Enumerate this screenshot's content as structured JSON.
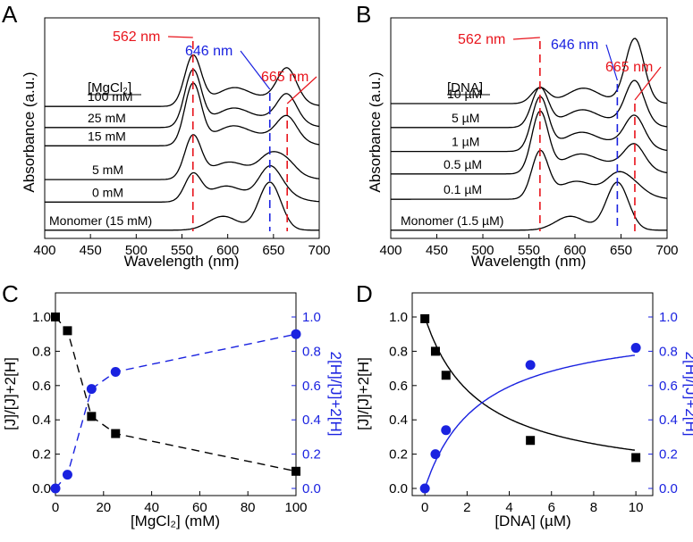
{
  "chart_data": [
    {
      "id": "A",
      "panel_label": "A",
      "type": "line",
      "xlabel": "Wavelength (nm)",
      "ylabel": "Absorbance (a.u.)",
      "xlim": [
        400,
        700
      ],
      "xticks": [
        400,
        450,
        500,
        550,
        600,
        650,
        700
      ],
      "legend_title": "[MgCl₂]",
      "series": [
        {
          "name": "100 mM",
          "label": "100 mM",
          "offset": 0.88,
          "mix": {
            "J": 0.36,
            "H": 0.64,
            "M": 0.0
          }
        },
        {
          "name": "25 mM",
          "label": "25 mM",
          "offset": 0.73,
          "mix": {
            "J": 0.28,
            "H": 0.72,
            "M": 0.0
          }
        },
        {
          "name": "15 mM",
          "label": "15 mM",
          "offset": 0.6,
          "mix": {
            "J": 0.22,
            "H": 0.78,
            "M": 0.0
          }
        },
        {
          "name": "5 mM",
          "label": "5 mM",
          "offset": 0.36,
          "mix": {
            "J": 0.1,
            "H": 0.55,
            "M": 0.35
          }
        },
        {
          "name": "0 mM",
          "label": "0 mM",
          "offset": 0.2,
          "mix": {
            "J": 0.02,
            "H": 0.35,
            "M": 0.63
          }
        },
        {
          "name": "Monomer (15 mM)",
          "label": "Monomer (15 mM)",
          "offset": 0.0,
          "mix": {
            "J": 0.0,
            "H": 0.0,
            "M": 1.0
          }
        }
      ],
      "markers": [
        {
          "label": "562 nm",
          "x": 562,
          "color": "#e8141c"
        },
        {
          "label": "646 nm",
          "x": 646,
          "color": "#1a22e0"
        },
        {
          "label": "665 nm",
          "x": 665,
          "color": "#e8141c"
        }
      ]
    },
    {
      "id": "B",
      "panel_label": "B",
      "type": "line",
      "xlabel": "Wavelength (nm)",
      "ylabel": "Absorbance (a.u.)",
      "xlim": [
        400,
        700
      ],
      "xticks": [
        400,
        450,
        500,
        550,
        600,
        650,
        700
      ],
      "legend_title": "[DNA]",
      "series": [
        {
          "name": "10 µM",
          "label": "10 µM",
          "offset": 0.9,
          "mix": {
            "J": 0.8,
            "H": 0.2,
            "M": 0.0
          }
        },
        {
          "name": "5 µM",
          "label": "5 µM",
          "offset": 0.73,
          "mix": {
            "J": 0.5,
            "H": 0.5,
            "M": 0.0
          }
        },
        {
          "name": "1 µM",
          "label": "1 µM",
          "offset": 0.56,
          "mix": {
            "J": 0.32,
            "H": 0.68,
            "M": 0.0
          }
        },
        {
          "name": "0.5 µM",
          "label": "0.5 µM",
          "offset": 0.4,
          "mix": {
            "J": 0.22,
            "H": 0.78,
            "M": 0.0
          }
        },
        {
          "name": "0.1 µM",
          "label": "0.1 µM",
          "offset": 0.22,
          "mix": {
            "J": 0.05,
            "H": 0.6,
            "M": 0.35
          }
        },
        {
          "name": "Monomer (1.5 µM)",
          "label": "Monomer (1.5 µM)",
          "offset": 0.0,
          "mix": {
            "J": 0.0,
            "H": 0.0,
            "M": 1.0
          }
        }
      ],
      "markers": [
        {
          "label": "562 nm",
          "x": 562,
          "color": "#e8141c"
        },
        {
          "label": "646 nm",
          "x": 646,
          "color": "#1a22e0"
        },
        {
          "label": "665 nm",
          "x": 665,
          "color": "#e8141c"
        }
      ]
    },
    {
      "id": "C",
      "panel_label": "C",
      "type": "scatter",
      "xlabel": "[MgCl₂] (mM)",
      "ylabel_left": "[J]/[J]+2[H]",
      "ylabel_right": "2[H]/[J]+2[H]",
      "xlim": [
        0,
        100
      ],
      "xticks": [
        0,
        20,
        40,
        60,
        80,
        100
      ],
      "ylim": [
        0,
        1.0
      ],
      "yticks": [
        "0.0",
        "0.2",
        "0.4",
        "0.6",
        "0.8",
        "1.0"
      ],
      "fit": "dashed",
      "series": [
        {
          "name": "[J]/[J]+2[H]",
          "color": "#000000",
          "marker": "square",
          "x": [
            0,
            5,
            15,
            25,
            100
          ],
          "values": [
            1.0,
            0.92,
            0.42,
            0.32,
            0.1
          ]
        },
        {
          "name": "2[H]/[J]+2[H]",
          "color": "#1a22e0",
          "marker": "circle",
          "x": [
            0,
            5,
            15,
            25,
            100
          ],
          "values": [
            0.0,
            0.08,
            0.58,
            0.68,
            0.9
          ]
        }
      ]
    },
    {
      "id": "D",
      "panel_label": "D",
      "type": "scatter",
      "xlabel": "[DNA] (µM)",
      "ylabel_left": "[J]/[J]+2[H]",
      "ylabel_right": "2[H]/[J]+2[H]",
      "xlim": [
        -0.6,
        10.8
      ],
      "xticks": [
        0,
        2,
        4,
        6,
        8,
        10
      ],
      "ylim": [
        0,
        1.0
      ],
      "yticks": [
        "0.0",
        "0.2",
        "0.4",
        "0.6",
        "0.8",
        "1.0"
      ],
      "fit": "solid",
      "series": [
        {
          "name": "[J]/[J]+2[H]",
          "color": "#000000",
          "marker": "square",
          "x": [
            0,
            0.5,
            1,
            5,
            10
          ],
          "values": [
            0.99,
            0.8,
            0.66,
            0.28,
            0.18
          ]
        },
        {
          "name": "2[H]/[J]+2[H]",
          "color": "#1a22e0",
          "marker": "circle",
          "x": [
            0,
            0.5,
            1,
            5,
            10
          ],
          "values": [
            0.0,
            0.2,
            0.34,
            0.72,
            0.82
          ]
        }
      ]
    }
  ]
}
